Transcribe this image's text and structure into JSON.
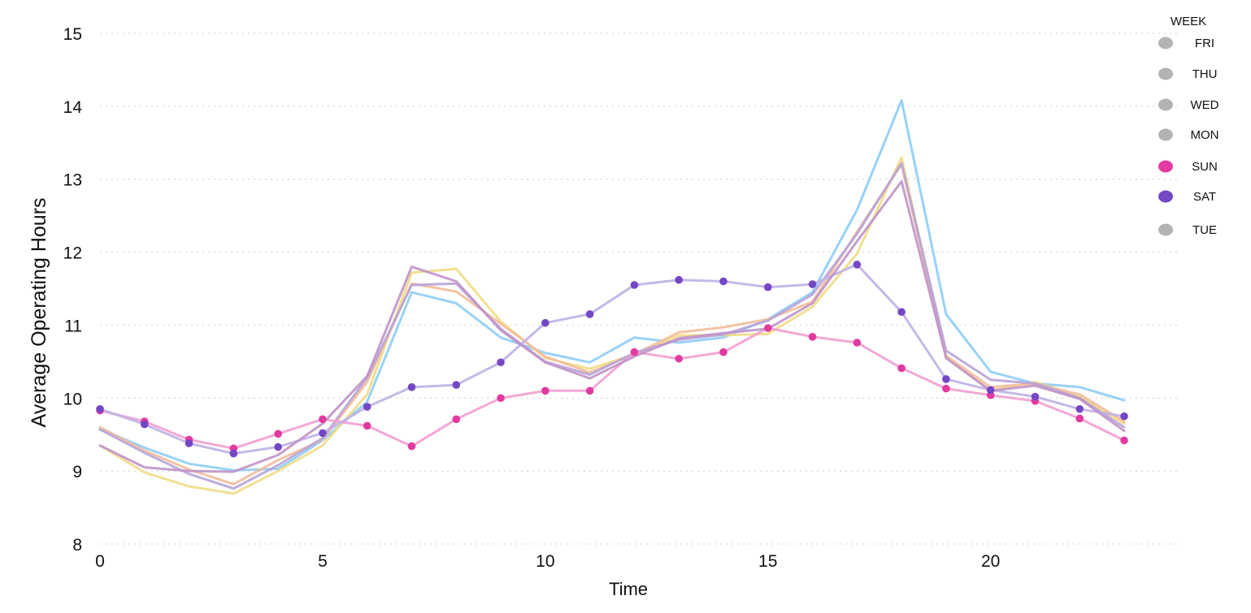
{
  "chart_data": {
    "type": "line",
    "xlabel": "Time",
    "ylabel": "Average Operating Hours",
    "xlim": [
      0,
      23
    ],
    "ylim": [
      8,
      15
    ],
    "x_ticks": [
      0,
      5,
      10,
      15,
      20
    ],
    "y_ticks": [
      8,
      9,
      10,
      11,
      12,
      13,
      14,
      15
    ],
    "grid": "horizontal dotted",
    "legend": {
      "title": "WEEK",
      "position": "top-right"
    },
    "x": [
      0,
      1,
      2,
      3,
      4,
      5,
      6,
      7,
      8,
      9,
      10,
      11,
      12,
      13,
      14,
      15,
      16,
      17,
      18,
      19,
      20,
      21,
      22,
      23
    ],
    "series": [
      {
        "name": "FRI",
        "color": "#8ecdf7",
        "markers": false,
        "values": [
          9.58,
          9.32,
          9.1,
          9.01,
          9.03,
          9.42,
          9.95,
          11.45,
          11.3,
          10.83,
          10.62,
          10.49,
          10.83,
          10.76,
          10.83,
          11.08,
          11.45,
          12.58,
          14.08,
          11.15,
          10.36,
          10.2,
          10.15,
          9.97
        ]
      },
      {
        "name": "THU",
        "color": "#f1dc85",
        "markers": false,
        "values": [
          9.35,
          8.98,
          8.79,
          8.69,
          9.0,
          9.35,
          10.05,
          11.72,
          11.77,
          11.05,
          10.55,
          10.4,
          10.6,
          10.86,
          10.86,
          10.88,
          11.25,
          11.98,
          13.3,
          10.55,
          10.1,
          10.22,
          10.02,
          9.65
        ]
      },
      {
        "name": "WED",
        "color": "#f2bd9a",
        "markers": false,
        "values": [
          9.6,
          9.28,
          9.02,
          8.82,
          9.15,
          9.43,
          10.22,
          11.57,
          11.46,
          11.02,
          10.57,
          10.35,
          10.6,
          10.9,
          10.97,
          11.08,
          11.32,
          12.28,
          13.2,
          10.58,
          10.15,
          10.2,
          10.05,
          9.68
        ]
      },
      {
        "name": "MON",
        "color": "#b7a3d8",
        "markers": false,
        "values": [
          9.57,
          9.25,
          8.96,
          8.76,
          9.08,
          9.45,
          10.28,
          11.55,
          11.57,
          10.95,
          10.5,
          10.32,
          10.62,
          10.8,
          10.87,
          11.06,
          11.42,
          12.25,
          13.22,
          10.65,
          10.25,
          10.2,
          10.0,
          9.6
        ]
      },
      {
        "name": "SUN",
        "color": "#f29fd0",
        "dot_color": "#e23aa0",
        "markers": true,
        "values": [
          9.83,
          9.68,
          9.43,
          9.31,
          9.51,
          9.71,
          9.62,
          9.34,
          9.71,
          10.0,
          10.1,
          10.1,
          10.63,
          10.54,
          10.63,
          10.96,
          10.84,
          10.76,
          10.41,
          10.13,
          10.04,
          9.96,
          9.72,
          9.42
        ]
      },
      {
        "name": "SAT",
        "color": "#bfb0e6",
        "dot_color": "#7447c4",
        "markers": true,
        "values": [
          9.85,
          9.64,
          9.38,
          9.24,
          9.33,
          9.52,
          9.88,
          10.15,
          10.18,
          10.49,
          11.03,
          11.15,
          11.55,
          11.62,
          11.6,
          11.52,
          11.56,
          11.83,
          11.18,
          10.26,
          10.11,
          10.02,
          9.85,
          9.75
        ]
      },
      {
        "name": "TUE",
        "color": "#c092c8",
        "markers": false,
        "values": [
          9.35,
          9.05,
          9.0,
          8.99,
          9.22,
          9.65,
          10.3,
          11.8,
          11.6,
          10.93,
          10.49,
          10.27,
          10.57,
          10.82,
          10.89,
          10.95,
          11.3,
          12.15,
          12.97,
          10.55,
          10.1,
          10.17,
          9.99,
          9.55
        ]
      }
    ],
    "legend_items": [
      {
        "name": "FRI",
        "color": "#b3b3b3"
      },
      {
        "name": "THU",
        "color": "#b3b3b3"
      },
      {
        "name": "WED",
        "color": "#b3b3b3"
      },
      {
        "name": "MON",
        "color": "#b3b3b3"
      },
      {
        "name": "SUN",
        "color": "#e23aa0"
      },
      {
        "name": "SAT",
        "color": "#7447c4"
      },
      {
        "name": "TUE",
        "color": "#b3b3b3"
      }
    ]
  }
}
